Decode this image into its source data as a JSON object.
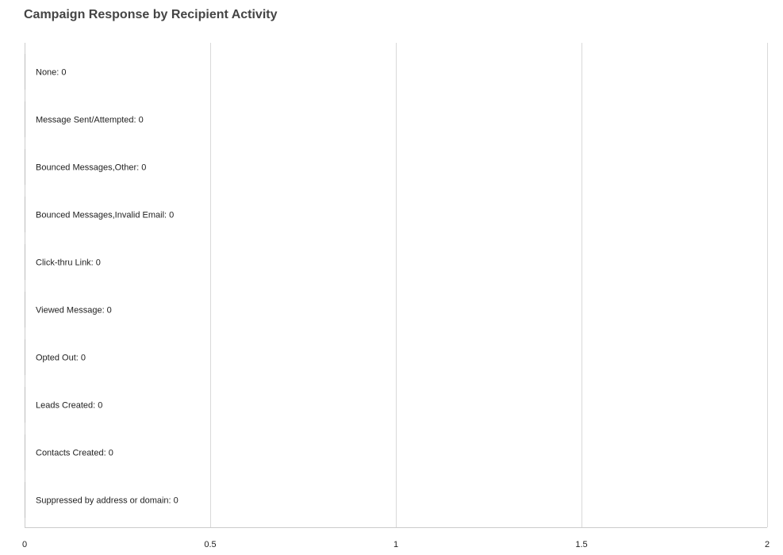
{
  "chart_data": {
    "type": "bar",
    "orientation": "horizontal",
    "title": "Campaign Response by Recipient Activity",
    "categories": [
      "None",
      "Message Sent/Attempted",
      "Bounced Messages,Other",
      "Bounced Messages,Invalid Email",
      "Click-thru Link",
      "Viewed Message",
      "Opted Out",
      "Leads Created",
      "Contacts Created",
      "Suppressed by address or domain"
    ],
    "values": [
      0,
      0,
      0,
      0,
      0,
      0,
      0,
      0,
      0,
      0
    ],
    "data_labels": [
      "None: 0",
      "Message Sent/Attempted: 0",
      "Bounced Messages,Other: 0",
      "Bounced Messages,Invalid Email: 0",
      "Click-thru Link: 0",
      "Viewed Message: 0",
      "Opted Out: 0",
      "Leads Created: 0",
      "Contacts Created: 0",
      "Suppressed by address or domain: 0"
    ],
    "xlim": [
      0,
      2
    ],
    "xticks": [
      0,
      0.5,
      1,
      1.5,
      2
    ],
    "xtick_labels": [
      "0",
      "0.5",
      "1",
      "1.5",
      "2"
    ],
    "grid": true,
    "legend": "none",
    "colors": {
      "bar": "#bbbbbb",
      "grid": "#d9d9d9",
      "axis": "#cccccc",
      "title": "#444444",
      "text": "#222222"
    }
  }
}
